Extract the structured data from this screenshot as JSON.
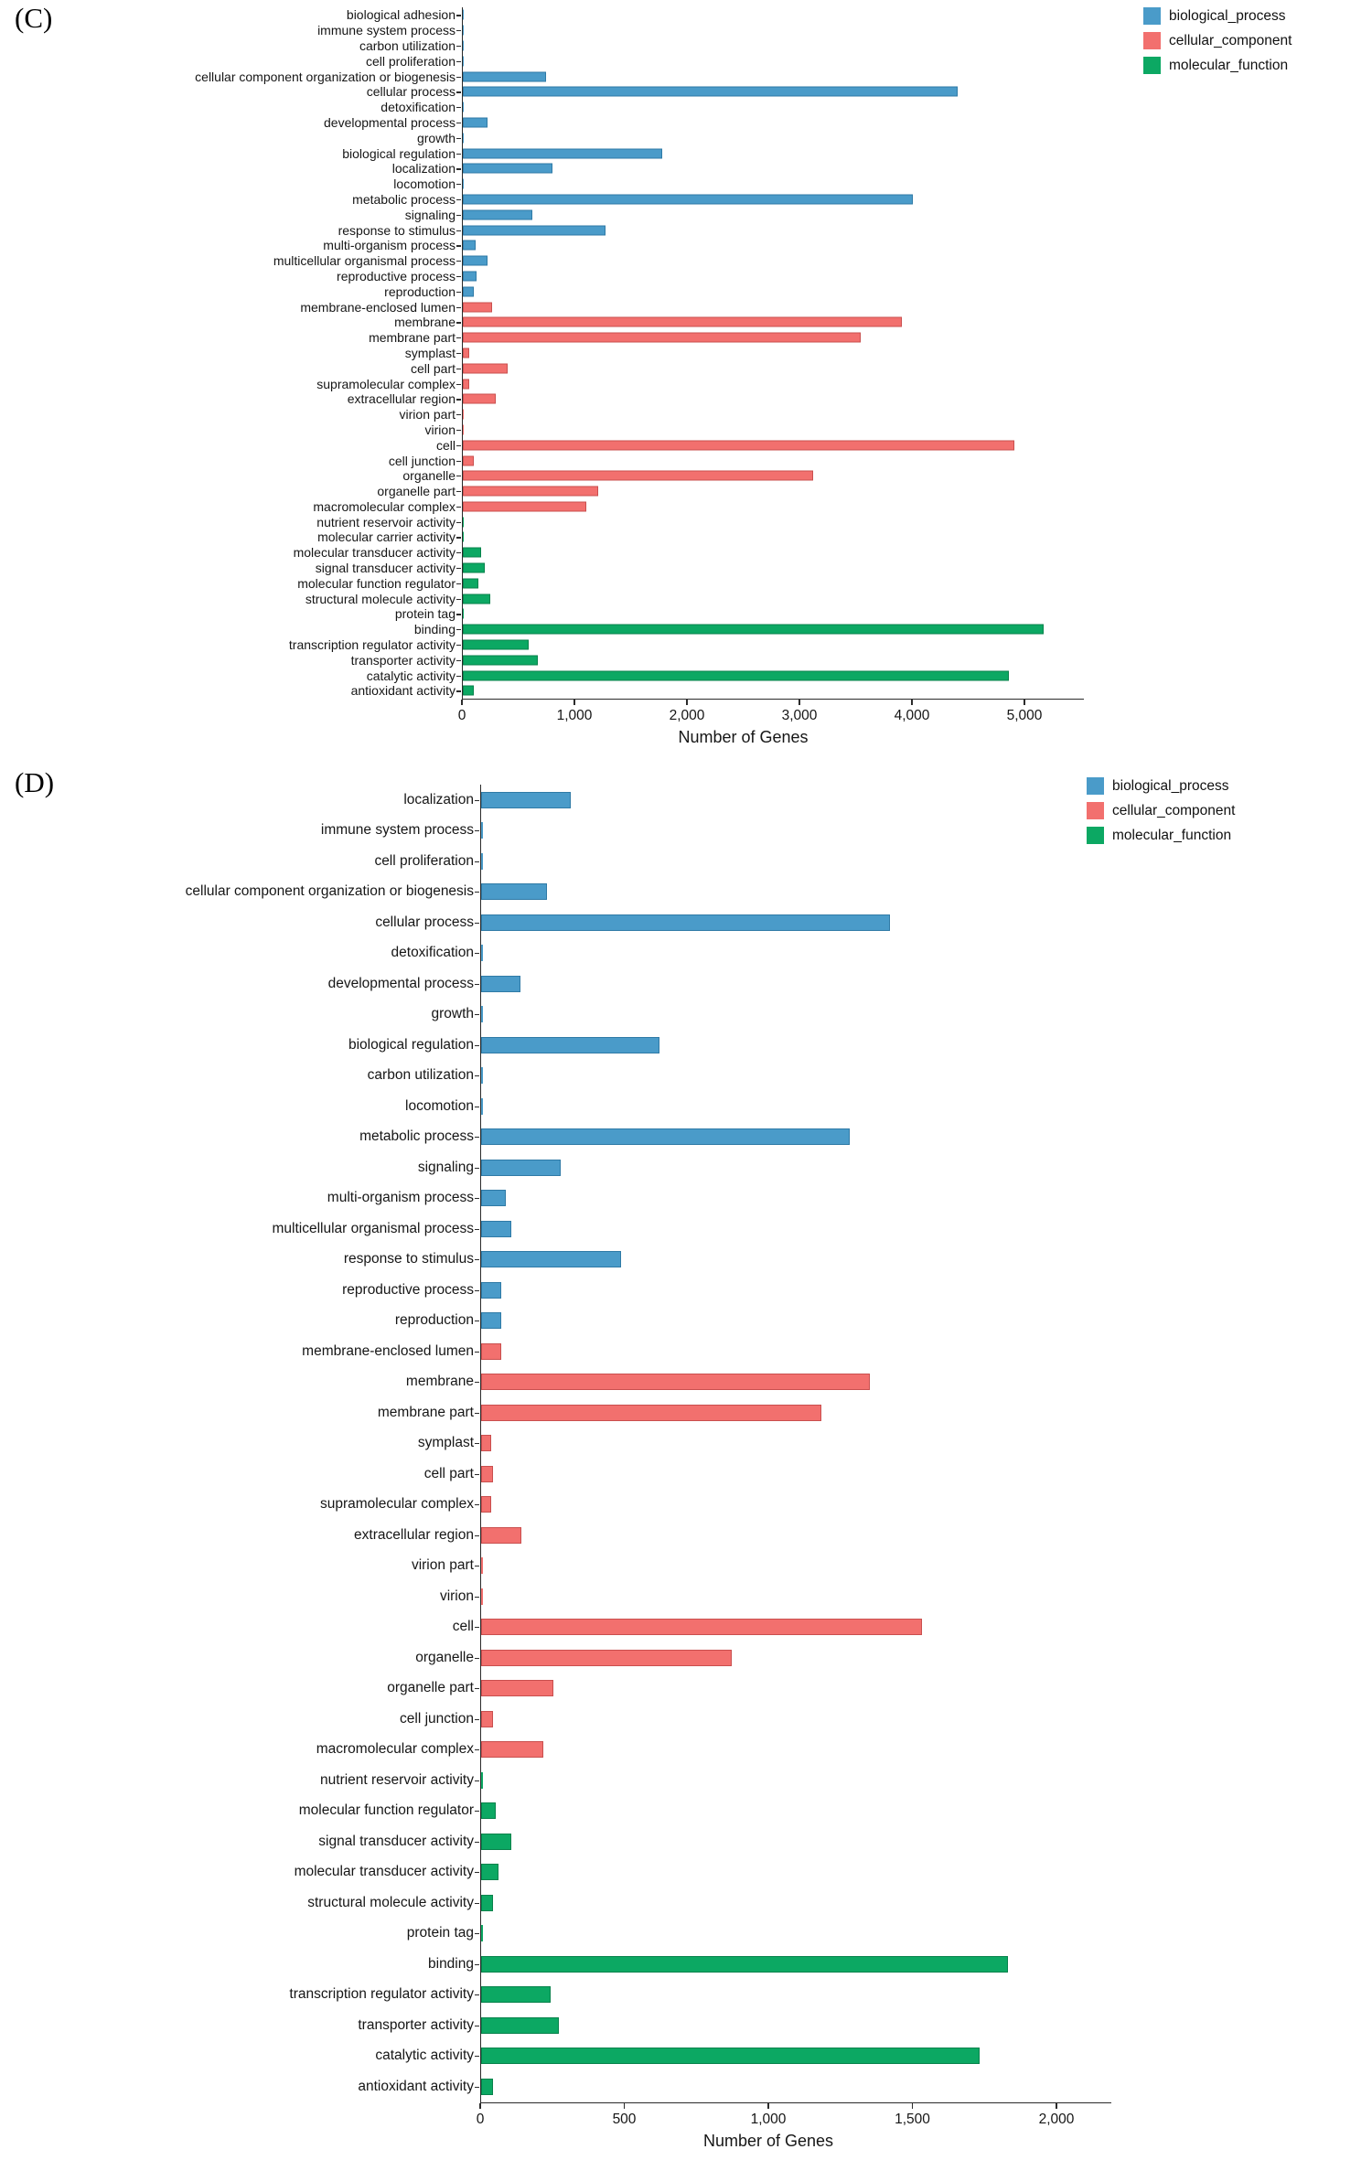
{
  "legend": {
    "items": [
      {
        "label": "biological_process",
        "color": "#4a9bc9",
        "border": "#2f7aa6"
      },
      {
        "label": "cellular_component",
        "color": "#f2706e",
        "border": "#c94f4e"
      },
      {
        "label": "molecular_function",
        "color": "#0ca863",
        "border": "#07824b"
      }
    ]
  },
  "chart_data": [
    {
      "type": "bar",
      "orientation": "horizontal",
      "panel_label": "(C)",
      "xlabel": "Number of Genes",
      "xlim": [
        0,
        5500
      ],
      "grid": false,
      "legend_position": "top-right",
      "x_ticks": [
        {
          "value": 0,
          "label": "0"
        },
        {
          "value": 1000,
          "label": "1,000"
        },
        {
          "value": 2000,
          "label": "2,000"
        },
        {
          "value": 3000,
          "label": "3,000"
        },
        {
          "value": 4000,
          "label": "4,000"
        },
        {
          "value": 5000,
          "label": "5,000"
        }
      ],
      "bars": [
        {
          "label": "biological adhesion",
          "value": 10,
          "group": "biological_process"
        },
        {
          "label": "immune system process",
          "value": 10,
          "group": "biological_process"
        },
        {
          "label": "carbon utilization",
          "value": 5,
          "group": "biological_process"
        },
        {
          "label": "cell proliferation",
          "value": 10,
          "group": "biological_process"
        },
        {
          "label": "cellular component organization or biogenesis",
          "value": 740,
          "group": "biological_process"
        },
        {
          "label": "cellular process",
          "value": 4400,
          "group": "biological_process"
        },
        {
          "label": "detoxification",
          "value": 10,
          "group": "biological_process"
        },
        {
          "label": "developmental process",
          "value": 220,
          "group": "biological_process"
        },
        {
          "label": "growth",
          "value": 10,
          "group": "biological_process"
        },
        {
          "label": "biological regulation",
          "value": 1770,
          "group": "biological_process"
        },
        {
          "label": "localization",
          "value": 800,
          "group": "biological_process"
        },
        {
          "label": "locomotion",
          "value": 5,
          "group": "biological_process"
        },
        {
          "label": "metabolic process",
          "value": 4000,
          "group": "biological_process"
        },
        {
          "label": "signaling",
          "value": 620,
          "group": "biological_process"
        },
        {
          "label": "response to stimulus",
          "value": 1270,
          "group": "biological_process"
        },
        {
          "label": "multi-organism process",
          "value": 110,
          "group": "biological_process"
        },
        {
          "label": "multicellular organismal process",
          "value": 220,
          "group": "biological_process"
        },
        {
          "label": "reproductive process",
          "value": 120,
          "group": "biological_process"
        },
        {
          "label": "reproduction",
          "value": 100,
          "group": "biological_process"
        },
        {
          "label": "membrane-enclosed lumen",
          "value": 260,
          "group": "cellular_component"
        },
        {
          "label": "membrane",
          "value": 3900,
          "group": "cellular_component"
        },
        {
          "label": "membrane part",
          "value": 3540,
          "group": "cellular_component"
        },
        {
          "label": "symplast",
          "value": 60,
          "group": "cellular_component"
        },
        {
          "label": "cell part",
          "value": 400,
          "group": "cellular_component"
        },
        {
          "label": "supramolecular complex",
          "value": 60,
          "group": "cellular_component"
        },
        {
          "label": "extracellular region",
          "value": 290,
          "group": "cellular_component"
        },
        {
          "label": "virion part",
          "value": 5,
          "group": "cellular_component"
        },
        {
          "label": "virion",
          "value": 5,
          "group": "cellular_component"
        },
        {
          "label": "cell",
          "value": 4900,
          "group": "cellular_component"
        },
        {
          "label": "cell junction",
          "value": 100,
          "group": "cellular_component"
        },
        {
          "label": "organelle",
          "value": 3110,
          "group": "cellular_component"
        },
        {
          "label": "organelle part",
          "value": 1200,
          "group": "cellular_component"
        },
        {
          "label": "macromolecular complex",
          "value": 1100,
          "group": "cellular_component"
        },
        {
          "label": "nutrient reservoir activity",
          "value": 10,
          "group": "molecular_function"
        },
        {
          "label": "molecular carrier activity",
          "value": 5,
          "group": "molecular_function"
        },
        {
          "label": "molecular transducer activity",
          "value": 160,
          "group": "molecular_function"
        },
        {
          "label": "signal transducer activity",
          "value": 195,
          "group": "molecular_function"
        },
        {
          "label": "molecular function regulator",
          "value": 135,
          "group": "molecular_function"
        },
        {
          "label": "structural molecule activity",
          "value": 245,
          "group": "molecular_function"
        },
        {
          "label": "protein tag",
          "value": 5,
          "group": "molecular_function"
        },
        {
          "label": "binding",
          "value": 5160,
          "group": "molecular_function"
        },
        {
          "label": "transcription regulator activity",
          "value": 585,
          "group": "molecular_function"
        },
        {
          "label": "transporter activity",
          "value": 670,
          "group": "molecular_function"
        },
        {
          "label": "catalytic activity",
          "value": 4850,
          "group": "molecular_function"
        },
        {
          "label": "antioxidant activity",
          "value": 100,
          "group": "molecular_function"
        }
      ]
    },
    {
      "type": "bar",
      "orientation": "horizontal",
      "panel_label": "(D)",
      "xlabel": "Number of Genes",
      "xlim": [
        0,
        2200
      ],
      "grid": false,
      "legend_position": "top-right",
      "x_ticks": [
        {
          "value": 0,
          "label": "0"
        },
        {
          "value": 500,
          "label": "500"
        },
        {
          "value": 1000,
          "label": "1,000"
        },
        {
          "value": 1500,
          "label": "1,500"
        },
        {
          "value": 2000,
          "label": "2,000"
        }
      ],
      "bars": [
        {
          "label": "localization",
          "value": 310,
          "group": "biological_process"
        },
        {
          "label": "immune system process",
          "value": 5,
          "group": "biological_process"
        },
        {
          "label": "cell proliferation",
          "value": 5,
          "group": "biological_process"
        },
        {
          "label": "cellular component organization or biogenesis",
          "value": 230,
          "group": "biological_process"
        },
        {
          "label": "cellular process",
          "value": 1420,
          "group": "biological_process"
        },
        {
          "label": "detoxification",
          "value": 5,
          "group": "biological_process"
        },
        {
          "label": "developmental process",
          "value": 135,
          "group": "biological_process"
        },
        {
          "label": "growth",
          "value": 5,
          "group": "biological_process"
        },
        {
          "label": "biological regulation",
          "value": 620,
          "group": "biological_process"
        },
        {
          "label": "carbon utilization",
          "value": 5,
          "group": "biological_process"
        },
        {
          "label": "locomotion",
          "value": 5,
          "group": "biological_process"
        },
        {
          "label": "metabolic process",
          "value": 1280,
          "group": "biological_process"
        },
        {
          "label": "signaling",
          "value": 275,
          "group": "biological_process"
        },
        {
          "label": "multi-organism process",
          "value": 85,
          "group": "biological_process"
        },
        {
          "label": "multicellular organismal process",
          "value": 105,
          "group": "biological_process"
        },
        {
          "label": "response to stimulus",
          "value": 485,
          "group": "biological_process"
        },
        {
          "label": "reproductive process",
          "value": 70,
          "group": "biological_process"
        },
        {
          "label": "reproduction",
          "value": 70,
          "group": "biological_process"
        },
        {
          "label": "membrane-enclosed lumen",
          "value": 70,
          "group": "cellular_component"
        },
        {
          "label": "membrane",
          "value": 1350,
          "group": "cellular_component"
        },
        {
          "label": "membrane part",
          "value": 1180,
          "group": "cellular_component"
        },
        {
          "label": "symplast",
          "value": 35,
          "group": "cellular_component"
        },
        {
          "label": "cell part",
          "value": 40,
          "group": "cellular_component"
        },
        {
          "label": "supramolecular complex",
          "value": 35,
          "group": "cellular_component"
        },
        {
          "label": "extracellular region",
          "value": 140,
          "group": "cellular_component"
        },
        {
          "label": "virion part",
          "value": 5,
          "group": "cellular_component"
        },
        {
          "label": "virion",
          "value": 5,
          "group": "cellular_component"
        },
        {
          "label": "cell",
          "value": 1530,
          "group": "cellular_component"
        },
        {
          "label": "organelle",
          "value": 870,
          "group": "cellular_component"
        },
        {
          "label": "organelle part",
          "value": 250,
          "group": "cellular_component"
        },
        {
          "label": "cell junction",
          "value": 40,
          "group": "cellular_component"
        },
        {
          "label": "macromolecular complex",
          "value": 215,
          "group": "cellular_component"
        },
        {
          "label": "nutrient reservoir activity",
          "value": 5,
          "group": "molecular_function"
        },
        {
          "label": "molecular function regulator",
          "value": 50,
          "group": "molecular_function"
        },
        {
          "label": "signal transducer activity",
          "value": 105,
          "group": "molecular_function"
        },
        {
          "label": "molecular transducer activity",
          "value": 60,
          "group": "molecular_function"
        },
        {
          "label": "structural molecule activity",
          "value": 40,
          "group": "molecular_function"
        },
        {
          "label": "protein tag",
          "value": 5,
          "group": "molecular_function"
        },
        {
          "label": "binding",
          "value": 1830,
          "group": "molecular_function"
        },
        {
          "label": "transcription regulator activity",
          "value": 240,
          "group": "molecular_function"
        },
        {
          "label": "transporter activity",
          "value": 270,
          "group": "molecular_function"
        },
        {
          "label": "catalytic activity",
          "value": 1730,
          "group": "molecular_function"
        },
        {
          "label": "antioxidant activity",
          "value": 40,
          "group": "molecular_function"
        }
      ]
    }
  ]
}
